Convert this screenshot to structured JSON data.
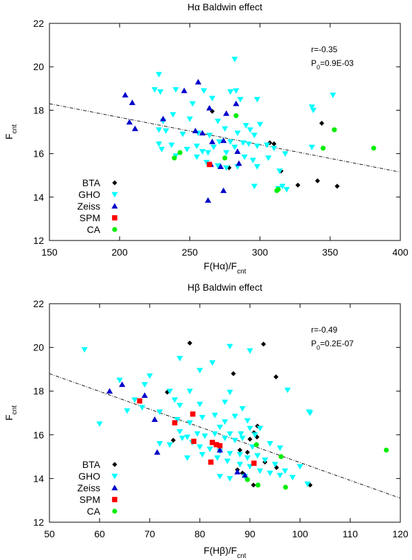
{
  "chart_data": [
    {
      "type": "scatter",
      "title": "Hα Baldwin effect",
      "xlabel": "F(Hα)/F",
      "xlabel_sub": "cnt",
      "ylabel": "F",
      "ylabel_sub": "cnt",
      "xlim": [
        150,
        400
      ],
      "ylim": [
        12,
        22
      ],
      "xticks": [
        "150",
        "200",
        "250",
        "300",
        "350",
        "400"
      ],
      "yticks": [
        "12",
        "14",
        "16",
        "18",
        "20",
        "22"
      ],
      "stats": {
        "r": "r=-0.35",
        "p_main": "P",
        "p_sub": "0",
        "p_rest": "=0.9E-03"
      },
      "fit": {
        "x1": 150,
        "y1": 18.3,
        "x2": 400,
        "y2": 15.15
      },
      "legend_position": "bottom-left",
      "series": [
        {
          "name": "BTA",
          "marker": "diamond",
          "color": "#000000",
          "points": [
            [
              266,
              17.95
            ],
            [
              307,
              16.5
            ],
            [
              310,
              16.45
            ],
            [
              315,
              15.2
            ],
            [
              344,
              17.4
            ],
            [
              278,
              15.35
            ],
            [
              327,
              14.55
            ],
            [
              341,
              14.75
            ],
            [
              355,
              14.5
            ]
          ]
        },
        {
          "name": "GHO",
          "marker": "triangle-down",
          "color": "#00ffff",
          "points": [
            [
              282,
              20.35
            ],
            [
              228,
              19.65
            ],
            [
              225,
              18.95
            ],
            [
              229,
              18.85
            ],
            [
              240,
              18.95
            ],
            [
              260,
              18.9
            ],
            [
              266,
              18.55
            ],
            [
              279,
              18.85
            ],
            [
              283,
              18.9
            ],
            [
              286,
              18.5
            ],
            [
              298,
              18.5
            ],
            [
              352,
              18.7
            ],
            [
              337,
              18.15
            ],
            [
              338,
              18.0
            ],
            [
              252,
              18.3
            ],
            [
              238,
              17.8
            ],
            [
              250,
              17.6
            ],
            [
              231,
              17.5
            ],
            [
              228,
              17.1
            ],
            [
              233,
              17.05
            ],
            [
              245,
              16.9
            ],
            [
              256,
              16.95
            ],
            [
              270,
              17.5
            ],
            [
              275,
              17.15
            ],
            [
              290,
              17.3
            ],
            [
              300,
              17.35
            ],
            [
              264,
              16.85
            ],
            [
              267,
              16.3
            ],
            [
              271,
              16.55
            ],
            [
              279,
              16.55
            ],
            [
              284,
              16.95
            ],
            [
              293,
              17.1
            ],
            [
              296,
              16.85
            ],
            [
              305,
              16.4
            ],
            [
              310,
              16.25
            ],
            [
              318,
              16.0
            ],
            [
              337,
              16.3
            ],
            [
              228,
              16.45
            ],
            [
              230,
              16.2
            ],
            [
              237,
              16.4
            ],
            [
              248,
              16.2
            ],
            [
              255,
              16.35
            ],
            [
              259,
              16.1
            ],
            [
              263,
              16.05
            ],
            [
              276,
              16.05
            ],
            [
              282,
              16.3
            ],
            [
              288,
              16.5
            ],
            [
              292,
              16.45
            ],
            [
              298,
              16.35
            ],
            [
              240,
              15.9
            ],
            [
              255,
              15.85
            ],
            [
              262,
              15.6
            ],
            [
              270,
              15.45
            ],
            [
              276,
              15.35
            ],
            [
              284,
              15.4
            ],
            [
              289,
              15.85
            ],
            [
              295,
              15.7
            ],
            [
              298,
              15.4
            ],
            [
              306,
              15.8
            ],
            [
              314,
              15.2
            ],
            [
              296,
              14.5
            ],
            [
              316,
              14.5
            ],
            [
              319,
              14.35
            ],
            [
              313,
              14.4
            ]
          ]
        },
        {
          "name": "Zeiss",
          "marker": "triangle-up",
          "color": "#0000cc",
          "points": [
            [
              204,
              18.7
            ],
            [
              209,
              18.35
            ],
            [
              246,
              18.9
            ],
            [
              256,
              19.3
            ],
            [
              264,
              18.1
            ],
            [
              276,
              17.85
            ],
            [
              283,
              18.3
            ],
            [
              207,
              17.45
            ],
            [
              211,
              17.15
            ],
            [
              231,
              17.6
            ],
            [
              254,
              17.05
            ],
            [
              259,
              16.95
            ],
            [
              266,
              16.55
            ],
            [
              274,
              16.6
            ],
            [
              284,
              16.1
            ],
            [
              265,
              15.5
            ],
            [
              272,
              15.4
            ],
            [
              285,
              15.55
            ],
            [
              274,
              14.3
            ],
            [
              263,
              13.85
            ]
          ]
        },
        {
          "name": "SPM",
          "marker": "square",
          "color": "#ff0000",
          "points": [
            [
              264,
              15.5
            ]
          ]
        },
        {
          "name": "CA",
          "marker": "circle",
          "color": "#00ee00",
          "points": [
            [
              283,
              17.75
            ],
            [
              353,
              17.1
            ],
            [
              345,
              16.25
            ],
            [
              381,
              16.25
            ],
            [
              243,
              16.05
            ],
            [
              275,
              15.8
            ],
            [
              239,
              15.8
            ],
            [
              313,
              14.35
            ],
            [
              312,
              14.3
            ]
          ]
        }
      ]
    },
    {
      "type": "scatter",
      "title": "Hβ Baldwin effect",
      "xlabel": "F(Hβ)/F",
      "xlabel_sub": "cnt",
      "ylabel": "F",
      "ylabel_sub": "cnt",
      "xlim": [
        50,
        120
      ],
      "ylim": [
        12,
        22
      ],
      "xticks": [
        "50",
        "60",
        "70",
        "80",
        "90",
        "100",
        "110",
        "120"
      ],
      "yticks": [
        "12",
        "14",
        "16",
        "18",
        "20",
        "22"
      ],
      "stats": {
        "r": "r=-0.49",
        "p_main": "P",
        "p_sub": "0",
        "p_rest": "=0.2E-07"
      },
      "fit": {
        "x1": 50,
        "y1": 18.8,
        "x2": 120,
        "y2": 13.1
      },
      "legend_position": "bottom-left",
      "series": [
        {
          "name": "BTA",
          "marker": "diamond",
          "color": "#000000",
          "points": [
            [
              78,
              20.2
            ],
            [
              92.7,
              20.15
            ],
            [
              86.7,
              18.8
            ],
            [
              95.2,
              18.65
            ],
            [
              73.5,
              17.95
            ],
            [
              74.7,
              15.75
            ],
            [
              83.7,
              15.5
            ],
            [
              88,
              15.3
            ],
            [
              89.5,
              15.2
            ],
            [
              90,
              15.8
            ],
            [
              90.8,
              16.1
            ],
            [
              91.5,
              16.4
            ],
            [
              91.4,
              15.9
            ],
            [
              93,
              14.75
            ],
            [
              95.3,
              14.5
            ],
            [
              87.5,
              14.4
            ],
            [
              88.5,
              14.25
            ],
            [
              90.7,
              13.7
            ],
            [
              102,
              13.7
            ]
          ]
        },
        {
          "name": "GHO",
          "marker": "triangle-down",
          "color": "#00ffff",
          "points": [
            [
              57,
              19.9
            ],
            [
              64,
              18.5
            ],
            [
              69,
              18.3
            ],
            [
              70,
              18.7
            ],
            [
              75,
              17.6
            ],
            [
              74,
              18.0
            ],
            [
              78,
              18.0
            ],
            [
              76,
              17.35
            ],
            [
              80,
              17.4
            ],
            [
              85,
              17.5
            ],
            [
              86,
              17.95
            ],
            [
              97.5,
              18.05
            ],
            [
              101.8,
              17.05
            ],
            [
              102,
              17.0
            ],
            [
              88.5,
              17.2
            ],
            [
              72,
              17.05
            ],
            [
              75.5,
              16.7
            ],
            [
              78,
              16.55
            ],
            [
              80.5,
              16.8
            ],
            [
              83,
              16.9
            ],
            [
              85,
              16.6
            ],
            [
              87,
              16.85
            ],
            [
              89.5,
              16.65
            ],
            [
              84,
              16.35
            ],
            [
              86,
              16.05
            ],
            [
              88.2,
              16.05
            ],
            [
              90,
              16.3
            ],
            [
              92,
              16.3
            ],
            [
              76,
              16.15
            ],
            [
              77.5,
              15.9
            ],
            [
              79.5,
              16.05
            ],
            [
              81,
              15.95
            ],
            [
              83,
              16.05
            ],
            [
              85,
              15.85
            ],
            [
              87,
              15.75
            ],
            [
              88.5,
              15.85
            ],
            [
              90.5,
              15.45
            ],
            [
              91,
              16.0
            ],
            [
              94,
              15.6
            ],
            [
              96,
              15.4
            ],
            [
              72,
              15.6
            ],
            [
              74,
              15.55
            ],
            [
              76.5,
              15.85
            ],
            [
              78.5,
              15.65
            ],
            [
              80,
              15.45
            ],
            [
              82,
              15.35
            ],
            [
              84,
              15.25
            ],
            [
              86,
              15.15
            ],
            [
              88,
              15.1
            ],
            [
              89.5,
              14.95
            ],
            [
              91.5,
              15.05
            ],
            [
              93,
              14.85
            ],
            [
              95,
              14.65
            ],
            [
              100,
              14.55
            ],
            [
              77.5,
              14.95
            ],
            [
              80.5,
              15.1
            ],
            [
              83.5,
              14.95
            ],
            [
              85.5,
              14.8
            ],
            [
              88,
              14.65
            ],
            [
              90,
              14.55
            ],
            [
              92,
              14.35
            ],
            [
              94,
              14.25
            ],
            [
              96,
              14.15
            ],
            [
              98.5,
              14.05
            ],
            [
              101.5,
              13.75
            ],
            [
              84,
              14.1
            ],
            [
              86,
              14.0
            ],
            [
              89,
              14.1
            ],
            [
              97,
              14.35
            ],
            [
              60,
              16.5
            ],
            [
              65.5,
              17.1
            ],
            [
              68.5,
              17.25
            ],
            [
              67,
              17.6
            ],
            [
              82.5,
              19.3
            ],
            [
              86,
              20.05
            ],
            [
              90,
              19.85
            ],
            [
              76,
              19.5
            ],
            [
              80,
              18.95
            ]
          ]
        },
        {
          "name": "Zeiss",
          "marker": "triangle-up",
          "color": "#0000cc",
          "points": [
            [
              62,
              18.0
            ],
            [
              64.5,
              18.3
            ],
            [
              69,
              17.8
            ],
            [
              71,
              16.7
            ],
            [
              71.5,
              15.2
            ],
            [
              84,
              15.3
            ],
            [
              87.5,
              14.3
            ],
            [
              89,
              14.15
            ]
          ]
        },
        {
          "name": "SPM",
          "marker": "square",
          "color": "#ff0000",
          "points": [
            [
              68,
              17.55
            ],
            [
              75,
              16.55
            ],
            [
              78.6,
              16.95
            ],
            [
              78.8,
              15.7
            ],
            [
              82.5,
              15.65
            ],
            [
              83.3,
              15.55
            ],
            [
              84,
              15.5
            ],
            [
              82.2,
              14.75
            ],
            [
              90.8,
              14.7
            ]
          ]
        },
        {
          "name": "CA",
          "marker": "circle",
          "color": "#00ee00",
          "points": [
            [
              91.3,
              15.55
            ],
            [
              96.2,
              15.0
            ],
            [
              89.5,
              13.95
            ],
            [
              91.6,
              13.7
            ],
            [
              97.1,
              13.6
            ],
            [
              117.2,
              15.3
            ]
          ]
        }
      ]
    }
  ]
}
